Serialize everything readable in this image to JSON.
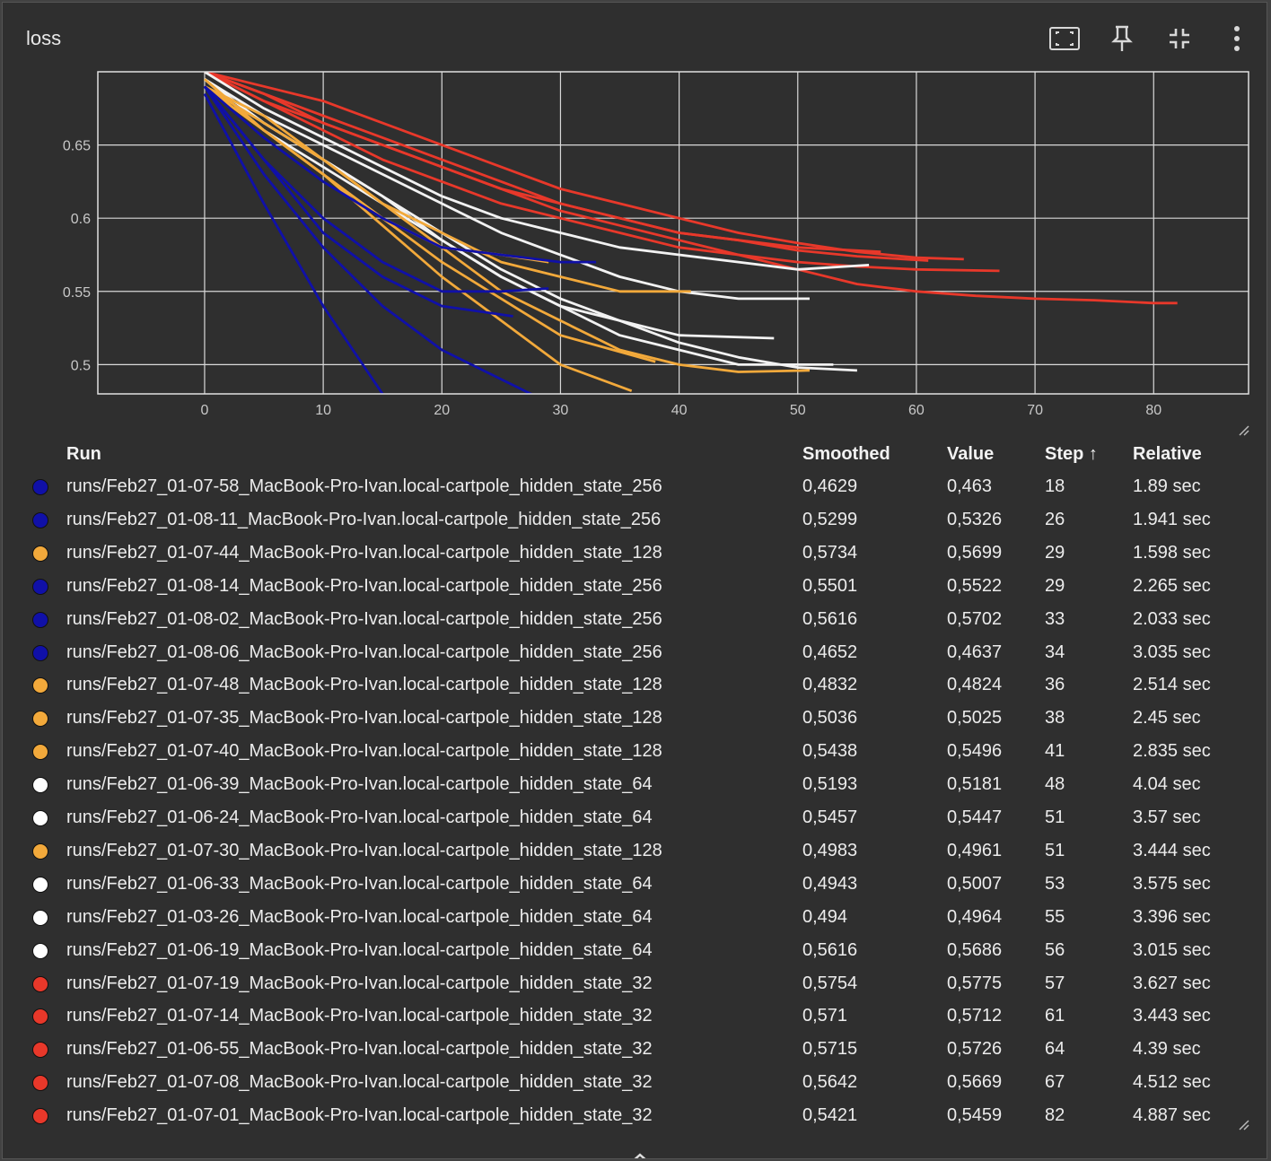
{
  "card": {
    "title": "loss"
  },
  "toolbar": {
    "icons": [
      "fit-domain-icon",
      "pin-icon",
      "collapse-icon",
      "more-vert-icon"
    ]
  },
  "colors": {
    "blue": "#1010a8",
    "orange": "#f2a93b",
    "white": "#f2f2f2",
    "red": "#e8382a",
    "grid": "#d9d9d9",
    "axis_text": "#c8c8c8"
  },
  "chart_data": {
    "type": "line",
    "title": "loss",
    "xlabel": "",
    "ylabel": "",
    "xlim": [
      -9,
      88
    ],
    "ylim": [
      0.48,
      0.7
    ],
    "x_ticks": [
      "0",
      "10",
      "20",
      "30",
      "40",
      "50",
      "60",
      "70",
      "80"
    ],
    "y_ticks": [
      "0.5",
      "0.55",
      "0.6",
      "0.65"
    ],
    "grid": true,
    "series": [
      {
        "name": "runs/Feb27_01-07-58_MacBook-Pro-Ivan.local-cartpole_hidden_state_256",
        "group": "blue",
        "x": [
          0,
          5,
          10,
          15,
          18
        ],
        "y": [
          0.685,
          0.61,
          0.54,
          0.48,
          0.463
        ]
      },
      {
        "name": "runs/Feb27_01-08-11_MacBook-Pro-Ivan.local-cartpole_hidden_state_256",
        "group": "blue",
        "x": [
          0,
          5,
          10,
          15,
          20,
          26
        ],
        "y": [
          0.69,
          0.64,
          0.59,
          0.56,
          0.54,
          0.533
        ]
      },
      {
        "name": "runs/Feb27_01-07-44_MacBook-Pro-Ivan.local-cartpole_hidden_state_128",
        "group": "orange",
        "x": [
          0,
          5,
          10,
          15,
          20,
          25,
          29
        ],
        "y": [
          0.69,
          0.66,
          0.63,
          0.6,
          0.58,
          0.575,
          0.57
        ]
      },
      {
        "name": "runs/Feb27_01-08-14_MacBook-Pro-Ivan.local-cartpole_hidden_state_256",
        "group": "blue",
        "x": [
          0,
          5,
          10,
          15,
          20,
          25,
          29
        ],
        "y": [
          0.69,
          0.64,
          0.6,
          0.57,
          0.55,
          0.55,
          0.552
        ]
      },
      {
        "name": "runs/Feb27_01-08-02_MacBook-Pro-Ivan.local-cartpole_hidden_state_256",
        "group": "blue",
        "x": [
          0,
          5,
          10,
          15,
          20,
          25,
          30,
          33
        ],
        "y": [
          0.69,
          0.655,
          0.625,
          0.6,
          0.58,
          0.575,
          0.57,
          0.57
        ]
      },
      {
        "name": "runs/Feb27_01-08-06_MacBook-Pro-Ivan.local-cartpole_hidden_state_256",
        "group": "blue",
        "x": [
          0,
          5,
          10,
          15,
          20,
          25,
          30,
          34
        ],
        "y": [
          0.69,
          0.63,
          0.58,
          0.54,
          0.51,
          0.49,
          0.47,
          0.464
        ]
      },
      {
        "name": "runs/Feb27_01-07-48_MacBook-Pro-Ivan.local-cartpole_hidden_state_128",
        "group": "orange",
        "x": [
          0,
          5,
          10,
          15,
          20,
          25,
          30,
          36
        ],
        "y": [
          0.695,
          0.66,
          0.63,
          0.595,
          0.56,
          0.53,
          0.5,
          0.482
        ]
      },
      {
        "name": "runs/Feb27_01-07-35_MacBook-Pro-Ivan.local-cartpole_hidden_state_128",
        "group": "orange",
        "x": [
          0,
          5,
          10,
          15,
          20,
          25,
          30,
          38
        ],
        "y": [
          0.69,
          0.66,
          0.63,
          0.6,
          0.57,
          0.545,
          0.52,
          0.502
        ]
      },
      {
        "name": "runs/Feb27_01-07-40_MacBook-Pro-Ivan.local-cartpole_hidden_state_128",
        "group": "orange",
        "x": [
          0,
          5,
          10,
          15,
          20,
          25,
          30,
          35,
          41
        ],
        "y": [
          0.69,
          0.67,
          0.64,
          0.61,
          0.59,
          0.57,
          0.56,
          0.55,
          0.55
        ]
      },
      {
        "name": "runs/Feb27_01-06-39_MacBook-Pro-Ivan.local-cartpole_hidden_state_64",
        "group": "white",
        "x": [
          0,
          5,
          10,
          15,
          20,
          25,
          30,
          35,
          40,
          48
        ],
        "y": [
          0.695,
          0.665,
          0.64,
          0.615,
          0.585,
          0.56,
          0.54,
          0.53,
          0.52,
          0.518
        ]
      },
      {
        "name": "runs/Feb27_01-06-24_MacBook-Pro-Ivan.local-cartpole_hidden_state_64",
        "group": "white",
        "x": [
          0,
          5,
          10,
          15,
          20,
          25,
          30,
          35,
          40,
          45,
          51
        ],
        "y": [
          0.695,
          0.67,
          0.65,
          0.63,
          0.61,
          0.59,
          0.575,
          0.56,
          0.55,
          0.545,
          0.545
        ]
      },
      {
        "name": "runs/Feb27_01-07-30_MacBook-Pro-Ivan.local-cartpole_hidden_state_128",
        "group": "orange",
        "x": [
          0,
          5,
          10,
          15,
          20,
          25,
          30,
          35,
          40,
          45,
          51
        ],
        "y": [
          0.69,
          0.665,
          0.64,
          0.61,
          0.58,
          0.55,
          0.53,
          0.51,
          0.5,
          0.495,
          0.496
        ]
      },
      {
        "name": "runs/Feb27_01-06-33_MacBook-Pro-Ivan.local-cartpole_hidden_state_64",
        "group": "white",
        "x": [
          0,
          5,
          10,
          15,
          20,
          25,
          30,
          35,
          40,
          45,
          53
        ],
        "y": [
          0.695,
          0.66,
          0.635,
          0.61,
          0.585,
          0.56,
          0.54,
          0.52,
          0.51,
          0.5,
          0.5
        ]
      },
      {
        "name": "runs/Feb27_01-03-26_MacBook-Pro-Ivan.local-cartpole_hidden_state_64",
        "group": "white",
        "x": [
          0,
          5,
          10,
          15,
          20,
          25,
          30,
          35,
          40,
          45,
          50,
          55
        ],
        "y": [
          0.695,
          0.665,
          0.64,
          0.615,
          0.59,
          0.565,
          0.545,
          0.53,
          0.515,
          0.505,
          0.498,
          0.496
        ]
      },
      {
        "name": "runs/Feb27_01-06-19_MacBook-Pro-Ivan.local-cartpole_hidden_state_64",
        "group": "white",
        "x": [
          0,
          5,
          10,
          15,
          20,
          25,
          30,
          35,
          40,
          45,
          50,
          56
        ],
        "y": [
          0.7,
          0.675,
          0.655,
          0.635,
          0.615,
          0.6,
          0.59,
          0.58,
          0.575,
          0.57,
          0.565,
          0.568
        ]
      },
      {
        "name": "runs/Feb27_01-07-19_MacBook-Pro-Ivan.local-cartpole_hidden_state_32",
        "group": "red",
        "x": [
          0,
          5,
          10,
          15,
          20,
          25,
          30,
          35,
          40,
          45,
          50,
          57
        ],
        "y": [
          0.7,
          0.68,
          0.665,
          0.65,
          0.635,
          0.62,
          0.61,
          0.6,
          0.59,
          0.585,
          0.58,
          0.577
        ]
      },
      {
        "name": "runs/Feb27_01-07-14_MacBook-Pro-Ivan.local-cartpole_hidden_state_32",
        "group": "red",
        "x": [
          0,
          5,
          10,
          15,
          20,
          25,
          30,
          35,
          40,
          45,
          50,
          55,
          61
        ],
        "y": [
          0.7,
          0.685,
          0.67,
          0.655,
          0.64,
          0.625,
          0.61,
          0.6,
          0.59,
          0.585,
          0.578,
          0.574,
          0.571
        ]
      },
      {
        "name": "runs/Feb27_01-06-55_MacBook-Pro-Ivan.local-cartpole_hidden_state_32",
        "group": "red",
        "x": [
          0,
          5,
          10,
          15,
          20,
          25,
          30,
          35,
          40,
          45,
          50,
          55,
          60,
          64
        ],
        "y": [
          0.7,
          0.69,
          0.68,
          0.665,
          0.65,
          0.635,
          0.62,
          0.61,
          0.6,
          0.59,
          0.583,
          0.577,
          0.573,
          0.572
        ]
      },
      {
        "name": "runs/Feb27_01-07-08_MacBook-Pro-Ivan.local-cartpole_hidden_state_32",
        "group": "red",
        "x": [
          0,
          5,
          10,
          15,
          20,
          25,
          30,
          35,
          40,
          45,
          50,
          55,
          60,
          67
        ],
        "y": [
          0.7,
          0.68,
          0.66,
          0.64,
          0.625,
          0.61,
          0.6,
          0.59,
          0.58,
          0.575,
          0.57,
          0.567,
          0.565,
          0.564
        ]
      },
      {
        "name": "runs/Feb27_01-07-01_MacBook-Pro-Ivan.local-cartpole_hidden_state_32",
        "group": "red",
        "x": [
          0,
          5,
          10,
          15,
          20,
          25,
          30,
          35,
          40,
          45,
          50,
          55,
          60,
          65,
          70,
          75,
          80,
          82
        ],
        "y": [
          0.7,
          0.685,
          0.665,
          0.65,
          0.635,
          0.62,
          0.605,
          0.595,
          0.585,
          0.575,
          0.565,
          0.555,
          0.55,
          0.547,
          0.545,
          0.544,
          0.542,
          0.542
        ]
      }
    ]
  },
  "table": {
    "headers": {
      "run": "Run",
      "smoothed": "Smoothed",
      "value": "Value",
      "step": "Step ↑",
      "relative": "Relative"
    },
    "rows": [
      {
        "run": "runs/Feb27_01-07-58_MacBook-Pro-Ivan.local-cartpole_hidden_state_256",
        "color": "#1010a8",
        "smoothed": "0,4629",
        "value": "0,463",
        "step": "18",
        "relative": "1.89 sec"
      },
      {
        "run": "runs/Feb27_01-08-11_MacBook-Pro-Ivan.local-cartpole_hidden_state_256",
        "color": "#1010a8",
        "smoothed": "0,5299",
        "value": "0,5326",
        "step": "26",
        "relative": "1.941 sec"
      },
      {
        "run": "runs/Feb27_01-07-44_MacBook-Pro-Ivan.local-cartpole_hidden_state_128",
        "color": "#f2a93b",
        "smoothed": "0,5734",
        "value": "0,5699",
        "step": "29",
        "relative": "1.598 sec"
      },
      {
        "run": "runs/Feb27_01-08-14_MacBook-Pro-Ivan.local-cartpole_hidden_state_256",
        "color": "#1010a8",
        "smoothed": "0,5501",
        "value": "0,5522",
        "step": "29",
        "relative": "2.265 sec"
      },
      {
        "run": "runs/Feb27_01-08-02_MacBook-Pro-Ivan.local-cartpole_hidden_state_256",
        "color": "#1010a8",
        "smoothed": "0,5616",
        "value": "0,5702",
        "step": "33",
        "relative": "2.033 sec"
      },
      {
        "run": "runs/Feb27_01-08-06_MacBook-Pro-Ivan.local-cartpole_hidden_state_256",
        "color": "#1010a8",
        "smoothed": "0,4652",
        "value": "0,4637",
        "step": "34",
        "relative": "3.035 sec"
      },
      {
        "run": "runs/Feb27_01-07-48_MacBook-Pro-Ivan.local-cartpole_hidden_state_128",
        "color": "#f2a93b",
        "smoothed": "0,4832",
        "value": "0,4824",
        "step": "36",
        "relative": "2.514 sec"
      },
      {
        "run": "runs/Feb27_01-07-35_MacBook-Pro-Ivan.local-cartpole_hidden_state_128",
        "color": "#f2a93b",
        "smoothed": "0,5036",
        "value": "0,5025",
        "step": "38",
        "relative": "2.45 sec"
      },
      {
        "run": "runs/Feb27_01-07-40_MacBook-Pro-Ivan.local-cartpole_hidden_state_128",
        "color": "#f2a93b",
        "smoothed": "0,5438",
        "value": "0,5496",
        "step": "41",
        "relative": "2.835 sec"
      },
      {
        "run": "runs/Feb27_01-06-39_MacBook-Pro-Ivan.local-cartpole_hidden_state_64",
        "color": "#ffffff",
        "smoothed": "0,5193",
        "value": "0,5181",
        "step": "48",
        "relative": "4.04 sec"
      },
      {
        "run": "runs/Feb27_01-06-24_MacBook-Pro-Ivan.local-cartpole_hidden_state_64",
        "color": "#ffffff",
        "smoothed": "0,5457",
        "value": "0,5447",
        "step": "51",
        "relative": "3.57 sec"
      },
      {
        "run": "runs/Feb27_01-07-30_MacBook-Pro-Ivan.local-cartpole_hidden_state_128",
        "color": "#f2a93b",
        "smoothed": "0,4983",
        "value": "0,4961",
        "step": "51",
        "relative": "3.444 sec"
      },
      {
        "run": "runs/Feb27_01-06-33_MacBook-Pro-Ivan.local-cartpole_hidden_state_64",
        "color": "#ffffff",
        "smoothed": "0,4943",
        "value": "0,5007",
        "step": "53",
        "relative": "3.575 sec"
      },
      {
        "run": "runs/Feb27_01-03-26_MacBook-Pro-Ivan.local-cartpole_hidden_state_64",
        "color": "#ffffff",
        "smoothed": "0,494",
        "value": "0,4964",
        "step": "55",
        "relative": "3.396 sec"
      },
      {
        "run": "runs/Feb27_01-06-19_MacBook-Pro-Ivan.local-cartpole_hidden_state_64",
        "color": "#ffffff",
        "smoothed": "0,5616",
        "value": "0,5686",
        "step": "56",
        "relative": "3.015 sec"
      },
      {
        "run": "runs/Feb27_01-07-19_MacBook-Pro-Ivan.local-cartpole_hidden_state_32",
        "color": "#e8382a",
        "smoothed": "0,5754",
        "value": "0,5775",
        "step": "57",
        "relative": "3.627 sec"
      },
      {
        "run": "runs/Feb27_01-07-14_MacBook-Pro-Ivan.local-cartpole_hidden_state_32",
        "color": "#e8382a",
        "smoothed": "0,571",
        "value": "0,5712",
        "step": "61",
        "relative": "3.443 sec"
      },
      {
        "run": "runs/Feb27_01-06-55_MacBook-Pro-Ivan.local-cartpole_hidden_state_32",
        "color": "#e8382a",
        "smoothed": "0,5715",
        "value": "0,5726",
        "step": "64",
        "relative": "4.39 sec"
      },
      {
        "run": "runs/Feb27_01-07-08_MacBook-Pro-Ivan.local-cartpole_hidden_state_32",
        "color": "#e8382a",
        "smoothed": "0,5642",
        "value": "0,5669",
        "step": "67",
        "relative": "4.512 sec"
      },
      {
        "run": "runs/Feb27_01-07-01_MacBook-Pro-Ivan.local-cartpole_hidden_state_32",
        "color": "#e8382a",
        "smoothed": "0,5421",
        "value": "0,5459",
        "step": "82",
        "relative": "4.887 sec"
      }
    ]
  }
}
